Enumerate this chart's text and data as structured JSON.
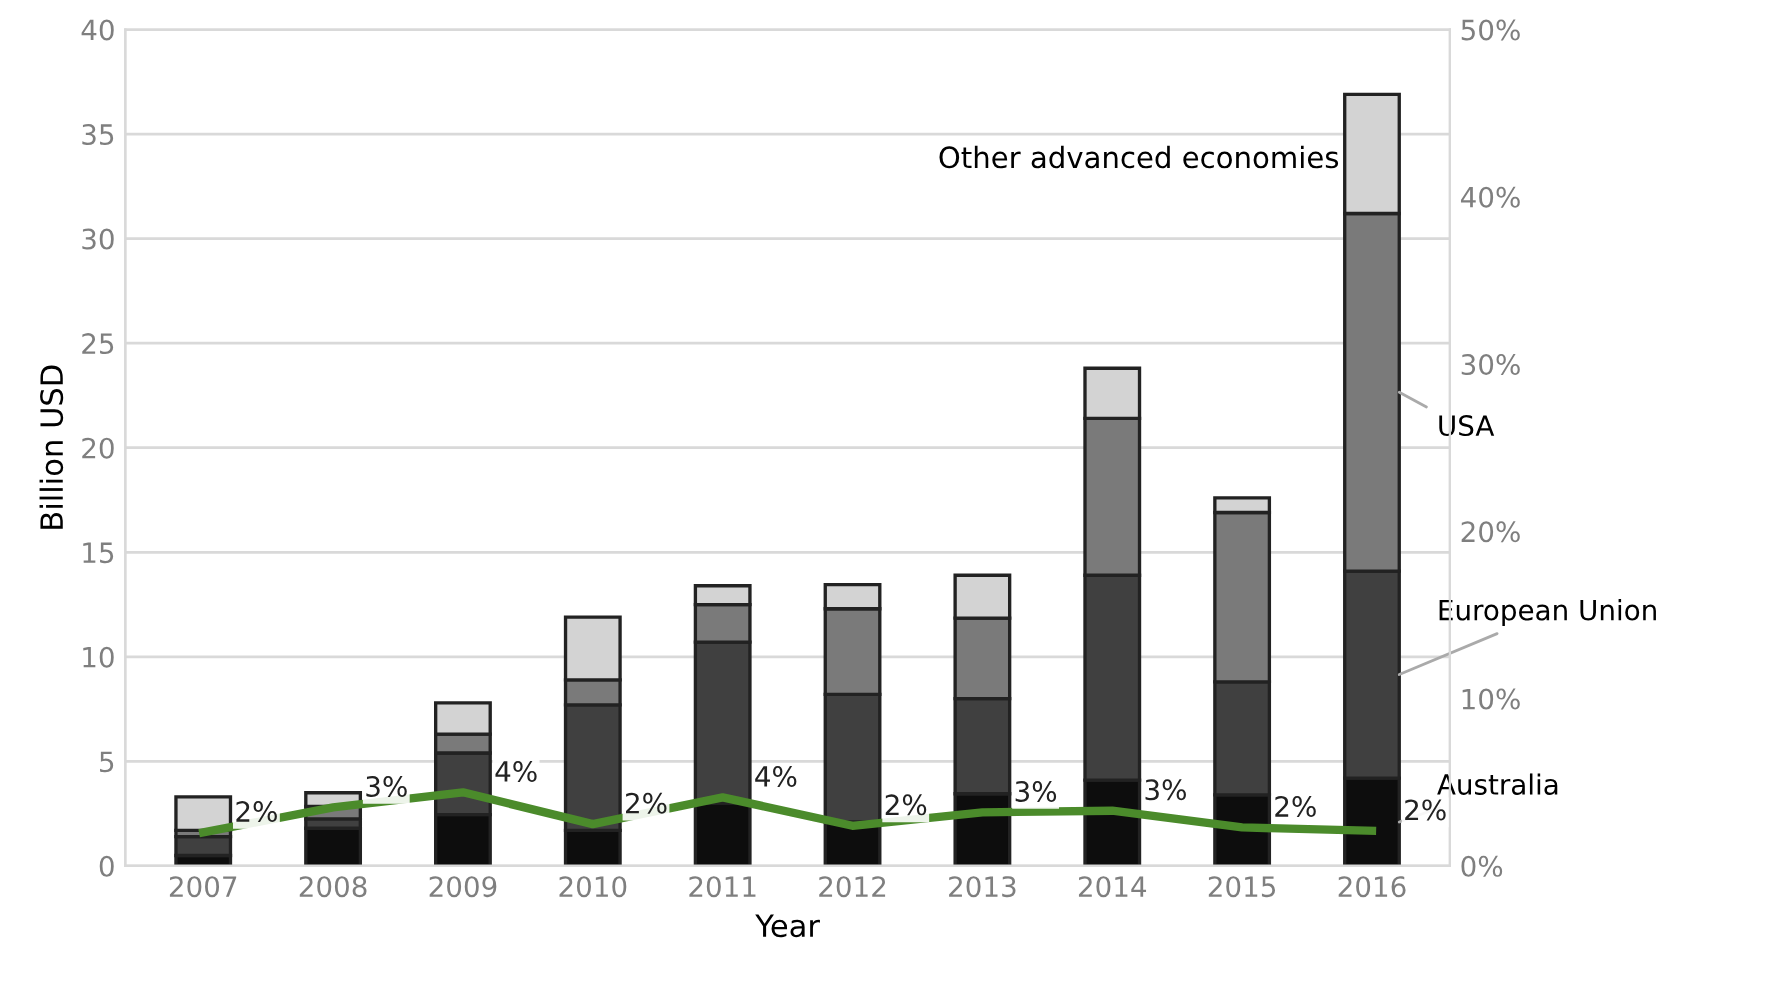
{
  "chart_data": {
    "type": "bar",
    "stacked": true,
    "xlabel": "Year",
    "ylabel": "Billion USD",
    "categories": [
      "2007",
      "2008",
      "2009",
      "2010",
      "2011",
      "2012",
      "2013",
      "2014",
      "2015",
      "2016"
    ],
    "series": [
      {
        "name": "Australia",
        "color": "#0d0d0d",
        "values": [
          0.5,
          1.8,
          2.45,
          1.7,
          3.0,
          2.1,
          3.45,
          4.1,
          3.4,
          4.2
        ]
      },
      {
        "name": "European Union",
        "color": "#404040",
        "values": [
          0.9,
          0.45,
          2.95,
          6.0,
          7.7,
          6.1,
          4.55,
          9.8,
          5.4,
          9.9
        ]
      },
      {
        "name": "USA",
        "color": "#7a7a7a",
        "values": [
          0.3,
          0.6,
          0.9,
          1.2,
          1.8,
          4.1,
          3.85,
          7.5,
          8.1,
          17.1
        ]
      },
      {
        "name": "Other advanced economies",
        "color": "#d3d3d3",
        "values": [
          1.6,
          0.65,
          1.5,
          3.0,
          0.9,
          1.15,
          2.05,
          2.4,
          0.7,
          5.7
        ]
      },
      {
        "type": "line",
        "axis": "y2",
        "color": "#4b8b2b",
        "values": [
          2.0,
          3.5,
          4.4,
          2.5,
          4.1,
          2.4,
          3.2,
          3.3,
          2.3,
          2.1
        ],
        "value_labels": [
          "2%",
          "3%",
          "4%",
          "2%",
          "4%",
          "2%",
          "3%",
          "3%",
          "2%",
          "2%"
        ]
      }
    ],
    "ylim": [
      0,
      40
    ],
    "yticks": [
      0,
      5,
      10,
      15,
      20,
      25,
      30,
      35,
      40
    ],
    "y2lim": [
      0,
      50
    ],
    "y2ticks": [
      {
        "value": 0,
        "label": "0%"
      },
      {
        "value": 10,
        "label": "10%"
      },
      {
        "value": 20,
        "label": "20%"
      },
      {
        "value": 30,
        "label": "30%"
      },
      {
        "value": 40,
        "label": "40%"
      },
      {
        "value": 50,
        "label": "50%"
      }
    ],
    "grid": "y",
    "marker": "none",
    "line_style": "solid"
  }
}
